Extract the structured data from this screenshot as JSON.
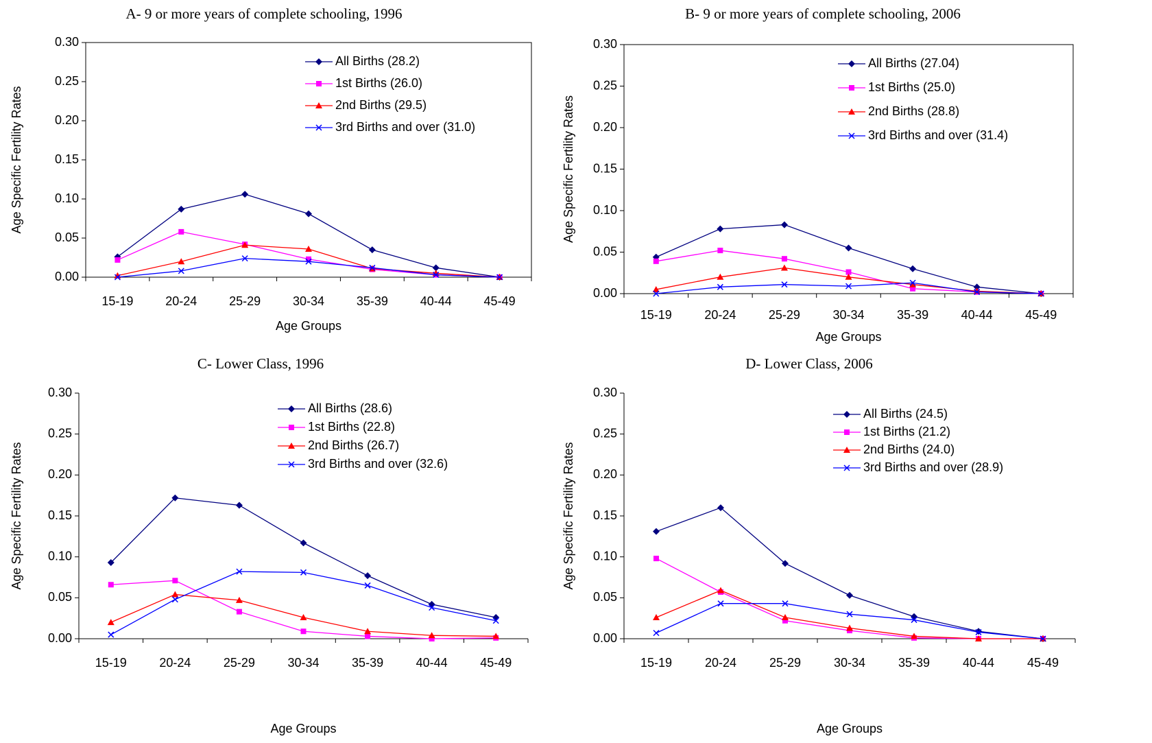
{
  "chart_data": [
    {
      "type": "line",
      "title": "A- 9 or more years of complete schooling, 1996",
      "x_label": "Age Groups",
      "y_label": "Age Specific Fertility Rates",
      "categories": [
        "15-19",
        "20-24",
        "25-29",
        "30-34",
        "35-39",
        "40-44",
        "45-49"
      ],
      "ylim": [
        0,
        0.3
      ],
      "yticks": [
        {
          "value": 0,
          "label": "0.00"
        },
        {
          "value": 0.05,
          "label": "0.05"
        },
        {
          "value": 0.1,
          "label": "0.10"
        },
        {
          "value": 0.15,
          "label": "0.15"
        },
        {
          "value": 0.2,
          "label": "0.20"
        },
        {
          "value": 0.25,
          "label": "0.25"
        },
        {
          "value": 0.3,
          "label": "0.30"
        }
      ],
      "series": [
        {
          "name": "All Births (28.2)",
          "color": "#000080",
          "marker": "diamond",
          "values": [
            0.026,
            0.087,
            0.106,
            0.081,
            0.035,
            0.012,
            0.0
          ]
        },
        {
          "name": "1st Births (26.0)",
          "color": "#ff00ff",
          "marker": "square",
          "values": [
            0.022,
            0.058,
            0.042,
            0.023,
            0.01,
            0.003,
            0.0
          ]
        },
        {
          "name": "2nd Births (29.5)",
          "color": "#ff0000",
          "marker": "triangle",
          "values": [
            0.002,
            0.02,
            0.041,
            0.036,
            0.011,
            0.005,
            0.0
          ]
        },
        {
          "name": "3rd Births and over (31.0)",
          "color": "#0000ff",
          "marker": "x",
          "values": [
            0.0,
            0.008,
            0.024,
            0.02,
            0.012,
            0.003,
            0.0
          ]
        }
      ]
    },
    {
      "type": "line",
      "title": "B- 9 or more years of complete schooling, 2006",
      "x_label": "Age Groups",
      "y_label": "Age Specific Fertility Rates",
      "categories": [
        "15-19",
        "20-24",
        "25-29",
        "30-34",
        "35-39",
        "40-44",
        "45-49"
      ],
      "ylim": [
        0,
        0.3
      ],
      "yticks": [
        {
          "value": 0,
          "label": "0.00"
        },
        {
          "value": 0.05,
          "label": "0.05"
        },
        {
          "value": 0.1,
          "label": "0.10"
        },
        {
          "value": 0.15,
          "label": "0.15"
        },
        {
          "value": 0.2,
          "label": "0.20"
        },
        {
          "value": 0.25,
          "label": "0.25"
        },
        {
          "value": 0.3,
          "label": "0.30"
        }
      ],
      "series": [
        {
          "name": "All Births (27.04)",
          "color": "#000080",
          "marker": "diamond",
          "values": [
            0.044,
            0.078,
            0.083,
            0.055,
            0.03,
            0.008,
            0.0
          ]
        },
        {
          "name": "1st Births (25.0)",
          "color": "#ff00ff",
          "marker": "square",
          "values": [
            0.039,
            0.052,
            0.042,
            0.026,
            0.006,
            0.002,
            0.0
          ]
        },
        {
          "name": "2nd Births (28.8)",
          "color": "#ff0000",
          "marker": "triangle",
          "values": [
            0.005,
            0.02,
            0.031,
            0.02,
            0.011,
            0.003,
            0.0
          ]
        },
        {
          "name": "3rd Births and over (31.4)",
          "color": "#0000ff",
          "marker": "x",
          "values": [
            0.0,
            0.008,
            0.011,
            0.009,
            0.013,
            0.002,
            0.0
          ]
        }
      ]
    },
    {
      "type": "line",
      "title": "C- Lower Class, 1996",
      "x_label": "Age Groups",
      "y_label": "Age Specific Fertility Rates",
      "categories": [
        "15-19",
        "20-24",
        "25-29",
        "30-34",
        "35-39",
        "40-44",
        "45-49"
      ],
      "ylim": [
        0,
        0.3
      ],
      "yticks": [
        {
          "value": 0,
          "label": "0.00"
        },
        {
          "value": 0.05,
          "label": "0.05"
        },
        {
          "value": 0.1,
          "label": "0.10"
        },
        {
          "value": 0.15,
          "label": "0.15"
        },
        {
          "value": 0.2,
          "label": "0.20"
        },
        {
          "value": 0.25,
          "label": "0.25"
        },
        {
          "value": 0.3,
          "label": "0.30"
        }
      ],
      "series": [
        {
          "name": "All Births (28.6)",
          "color": "#000080",
          "marker": "diamond",
          "values": [
            0.093,
            0.172,
            0.163,
            0.117,
            0.077,
            0.042,
            0.026
          ]
        },
        {
          "name": "1st Births (22.8)",
          "color": "#ff00ff",
          "marker": "square",
          "values": [
            0.066,
            0.071,
            0.033,
            0.009,
            0.003,
            0.0,
            0.001
          ]
        },
        {
          "name": "2nd Births (26.7)",
          "color": "#ff0000",
          "marker": "triangle",
          "values": [
            0.02,
            0.054,
            0.047,
            0.026,
            0.009,
            0.004,
            0.003
          ]
        },
        {
          "name": "3rd Births and over (32.6)",
          "color": "#0000ff",
          "marker": "x",
          "values": [
            0.005,
            0.048,
            0.082,
            0.081,
            0.065,
            0.038,
            0.022
          ]
        }
      ]
    },
    {
      "type": "line",
      "title": "D- Lower Class, 2006",
      "x_label": "Age Groups",
      "y_label": "Age Specific Fertility Rates",
      "categories": [
        "15-19",
        "20-24",
        "25-29",
        "30-34",
        "35-39",
        "40-44",
        "45-49"
      ],
      "ylim": [
        0,
        0.3
      ],
      "yticks": [
        {
          "value": 0,
          "label": "0.00"
        },
        {
          "value": 0.05,
          "label": "0.05"
        },
        {
          "value": 0.1,
          "label": "0.10"
        },
        {
          "value": 0.15,
          "label": "0.15"
        },
        {
          "value": 0.2,
          "label": "0.20"
        },
        {
          "value": 0.25,
          "label": "0.25"
        },
        {
          "value": 0.3,
          "label": "0.30"
        }
      ],
      "series": [
        {
          "name": "All Births (24.5)",
          "color": "#000080",
          "marker": "diamond",
          "values": [
            0.131,
            0.16,
            0.092,
            0.053,
            0.027,
            0.009,
            0.0
          ]
        },
        {
          "name": "1st Births (21.2)",
          "color": "#ff00ff",
          "marker": "square",
          "values": [
            0.098,
            0.057,
            0.022,
            0.01,
            0.001,
            0.0,
            0.0
          ]
        },
        {
          "name": "2nd Births (24.0)",
          "color": "#ff0000",
          "marker": "triangle",
          "values": [
            0.026,
            0.059,
            0.026,
            0.013,
            0.003,
            0.0,
            0.0
          ]
        },
        {
          "name": "3rd Births and over (28.9)",
          "color": "#0000ff",
          "marker": "x",
          "values": [
            0.007,
            0.043,
            0.043,
            0.03,
            0.023,
            0.008,
            0.0
          ]
        }
      ]
    }
  ]
}
